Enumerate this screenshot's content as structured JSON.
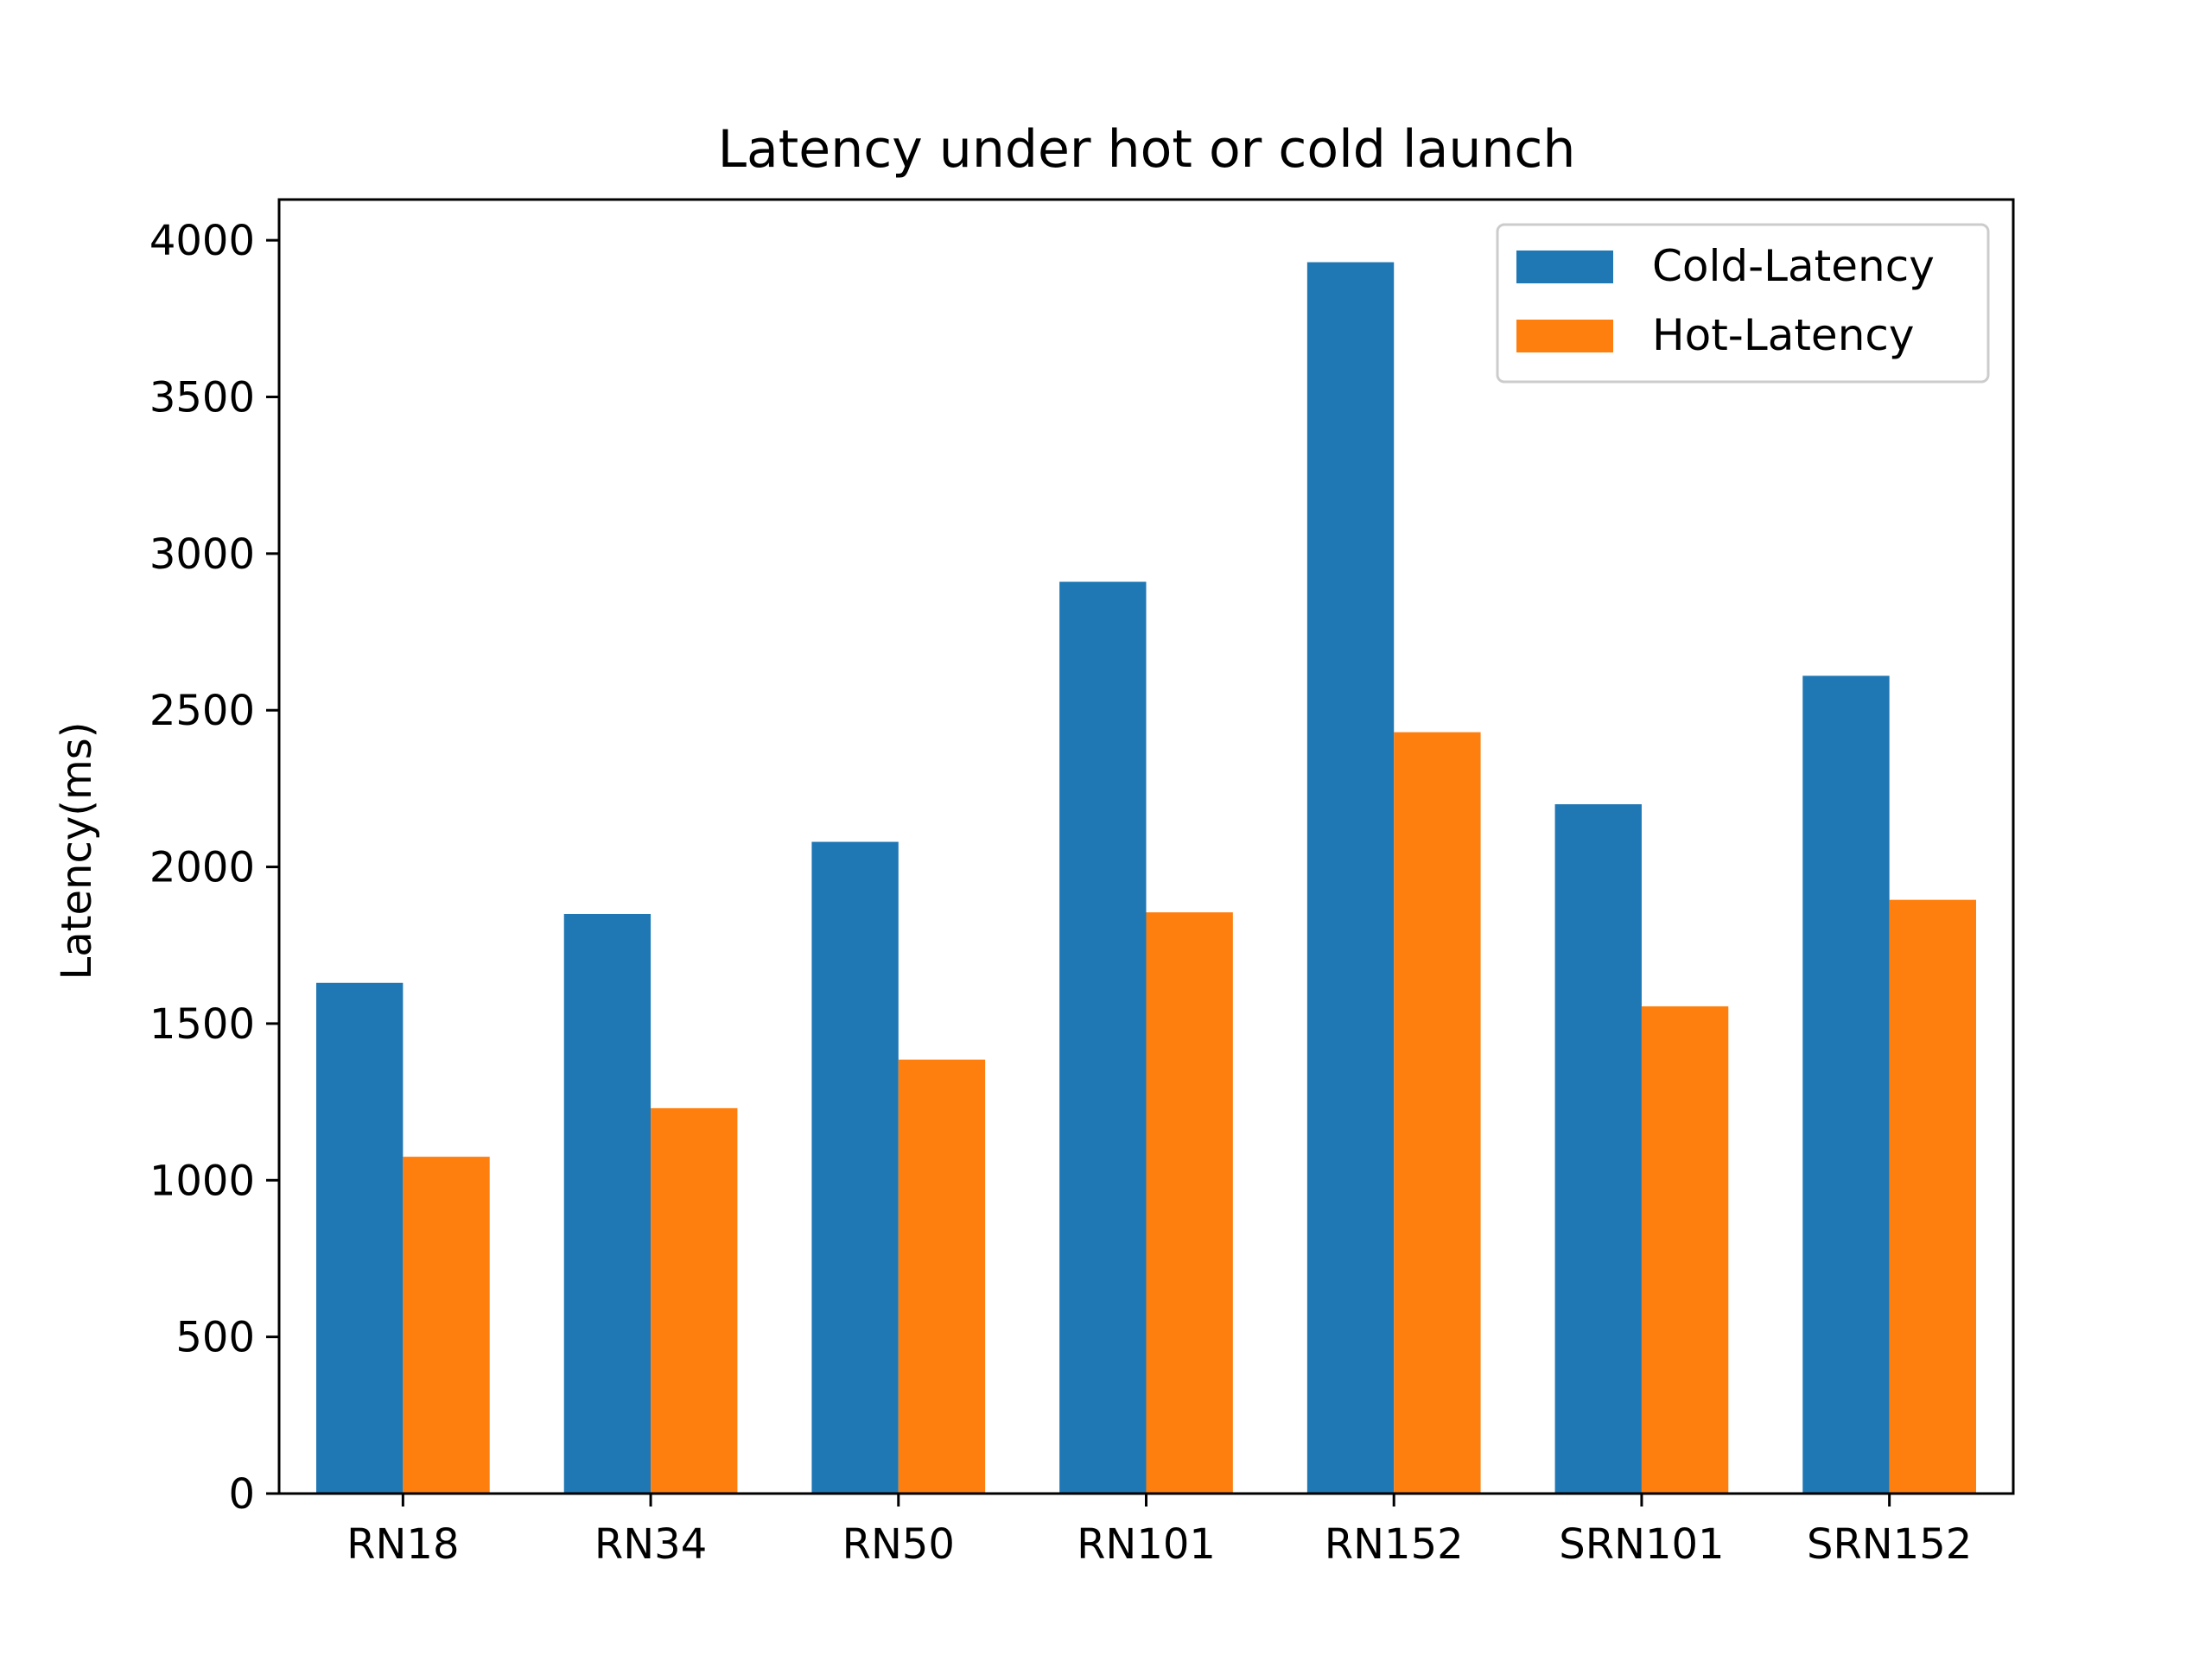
{
  "chart_data": {
    "type": "bar",
    "title": "Latency under hot or cold launch",
    "xlabel": "",
    "ylabel": "Latency(ms)",
    "categories": [
      "RN18",
      "RN34",
      "RN50",
      "RN101",
      "RN152",
      "SRN101",
      "SRN152"
    ],
    "series": [
      {
        "name": "Cold-Latency",
        "color": "#1f77b4",
        "values": [
          1630,
          1850,
          2080,
          2910,
          3930,
          2200,
          2610
        ]
      },
      {
        "name": "Hot-Latency",
        "color": "#ff7f0e",
        "values": [
          1075,
          1230,
          1385,
          1855,
          2430,
          1555,
          1895
        ]
      }
    ],
    "ylim": [
      0,
      4130
    ],
    "yticks": [
      0,
      500,
      1000,
      1500,
      2000,
      2500,
      3000,
      3500,
      4000
    ],
    "grid": false,
    "legend_position": "top-right"
  }
}
